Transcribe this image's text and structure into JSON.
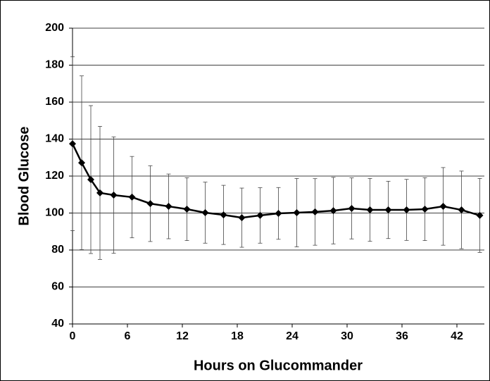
{
  "chart_data": {
    "type": "line",
    "x_label": "Hours on Glucommander",
    "y_label": "Blood Glucose",
    "x": [
      0,
      1,
      2,
      3,
      4.5,
      6.5,
      8.5,
      10.5,
      12.5,
      14.5,
      16.5,
      18.5,
      20.5,
      22.5,
      24.5,
      26.5,
      28.5,
      30.5,
      32.5,
      34.5,
      36.5,
      38.5,
      40.5,
      42.5,
      44.5
    ],
    "series": [
      {
        "color": "#000000",
        "values": [
          137.5,
          127.2,
          118.1,
          110.9,
          109.7,
          108.6,
          105.1,
          103.6,
          102.1,
          100.2,
          99,
          97.5,
          98.7,
          99.8,
          100.2,
          100.6,
          101.3,
          102.5,
          101.7,
          101.7,
          101.7,
          102.1,
          103.6,
          101.7,
          98.7
        ],
        "errors": [
          47,
          47,
          40,
          36,
          31.5,
          22,
          20.5,
          17.5,
          17,
          16.5,
          16,
          16,
          15,
          14,
          18.5,
          18,
          18,
          16.5,
          17,
          15.5,
          16.5,
          17,
          21,
          21,
          20
        ]
      }
    ],
    "xlim": [
      0,
      45
    ],
    "xticks": [
      0,
      6,
      12,
      18,
      24,
      30,
      36,
      42
    ],
    "ylim": [
      40,
      200
    ],
    "yticks": [
      40,
      60,
      80,
      100,
      120,
      140,
      160,
      180,
      200
    ],
    "grid": true
  }
}
